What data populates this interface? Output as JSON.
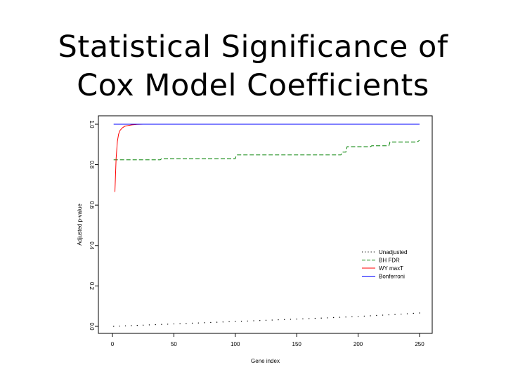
{
  "slide": {
    "title_line1": "Statistical Significance of",
    "title_line2": "Cox Model Coefficients"
  },
  "chart_data": {
    "type": "line",
    "xlabel": "Gene index",
    "ylabel": "Adjusted p-value",
    "xlim": [
      0,
      250
    ],
    "ylim": [
      0,
      1
    ],
    "x_ticks": [
      0,
      50,
      100,
      150,
      200,
      250
    ],
    "y_ticks": [
      0.0,
      0.2,
      0.4,
      0.6,
      0.8,
      1.0
    ],
    "x_tick_labels": [
      "0",
      "50",
      "100",
      "150",
      "200",
      "250"
    ],
    "y_tick_labels": [
      "0.0",
      "0.2",
      "0.4",
      "0.6",
      "0.8",
      "1.0"
    ],
    "legend_position": "right-middle",
    "series": [
      {
        "name": "Unadjusted",
        "color": "#000000",
        "dash": "dotted",
        "x": [
          1,
          25,
          50,
          75,
          100,
          125,
          150,
          175,
          200,
          225,
          250
        ],
        "y": [
          0.0,
          0.006,
          0.012,
          0.018,
          0.024,
          0.03,
          0.036,
          0.042,
          0.049,
          0.057,
          0.066
        ]
      },
      {
        "name": "BH FDR",
        "color": "#008000",
        "dash": "dashed",
        "x": [
          1,
          39,
          40,
          100,
          101,
          186,
          187,
          190,
          191,
          210,
          211,
          225,
          226,
          248,
          250
        ],
        "y": [
          0.824,
          0.824,
          0.83,
          0.83,
          0.848,
          0.848,
          0.862,
          0.862,
          0.889,
          0.889,
          0.893,
          0.893,
          0.912,
          0.912,
          0.92
        ]
      },
      {
        "name": "WY maxT",
        "color": "#ff0000",
        "dash": "solid",
        "x": [
          2,
          3,
          4,
          5,
          6,
          8,
          10,
          13,
          16,
          20,
          25,
          30,
          35
        ],
        "y": [
          0.665,
          0.83,
          0.915,
          0.95,
          0.968,
          0.982,
          0.99,
          0.994,
          0.997,
          0.999,
          1.0,
          1.0,
          1.0
        ]
      },
      {
        "name": "Bonferroni",
        "color": "#0000ff",
        "dash": "solid",
        "x": [
          1,
          250
        ],
        "y": [
          1.0,
          1.0
        ]
      }
    ]
  }
}
